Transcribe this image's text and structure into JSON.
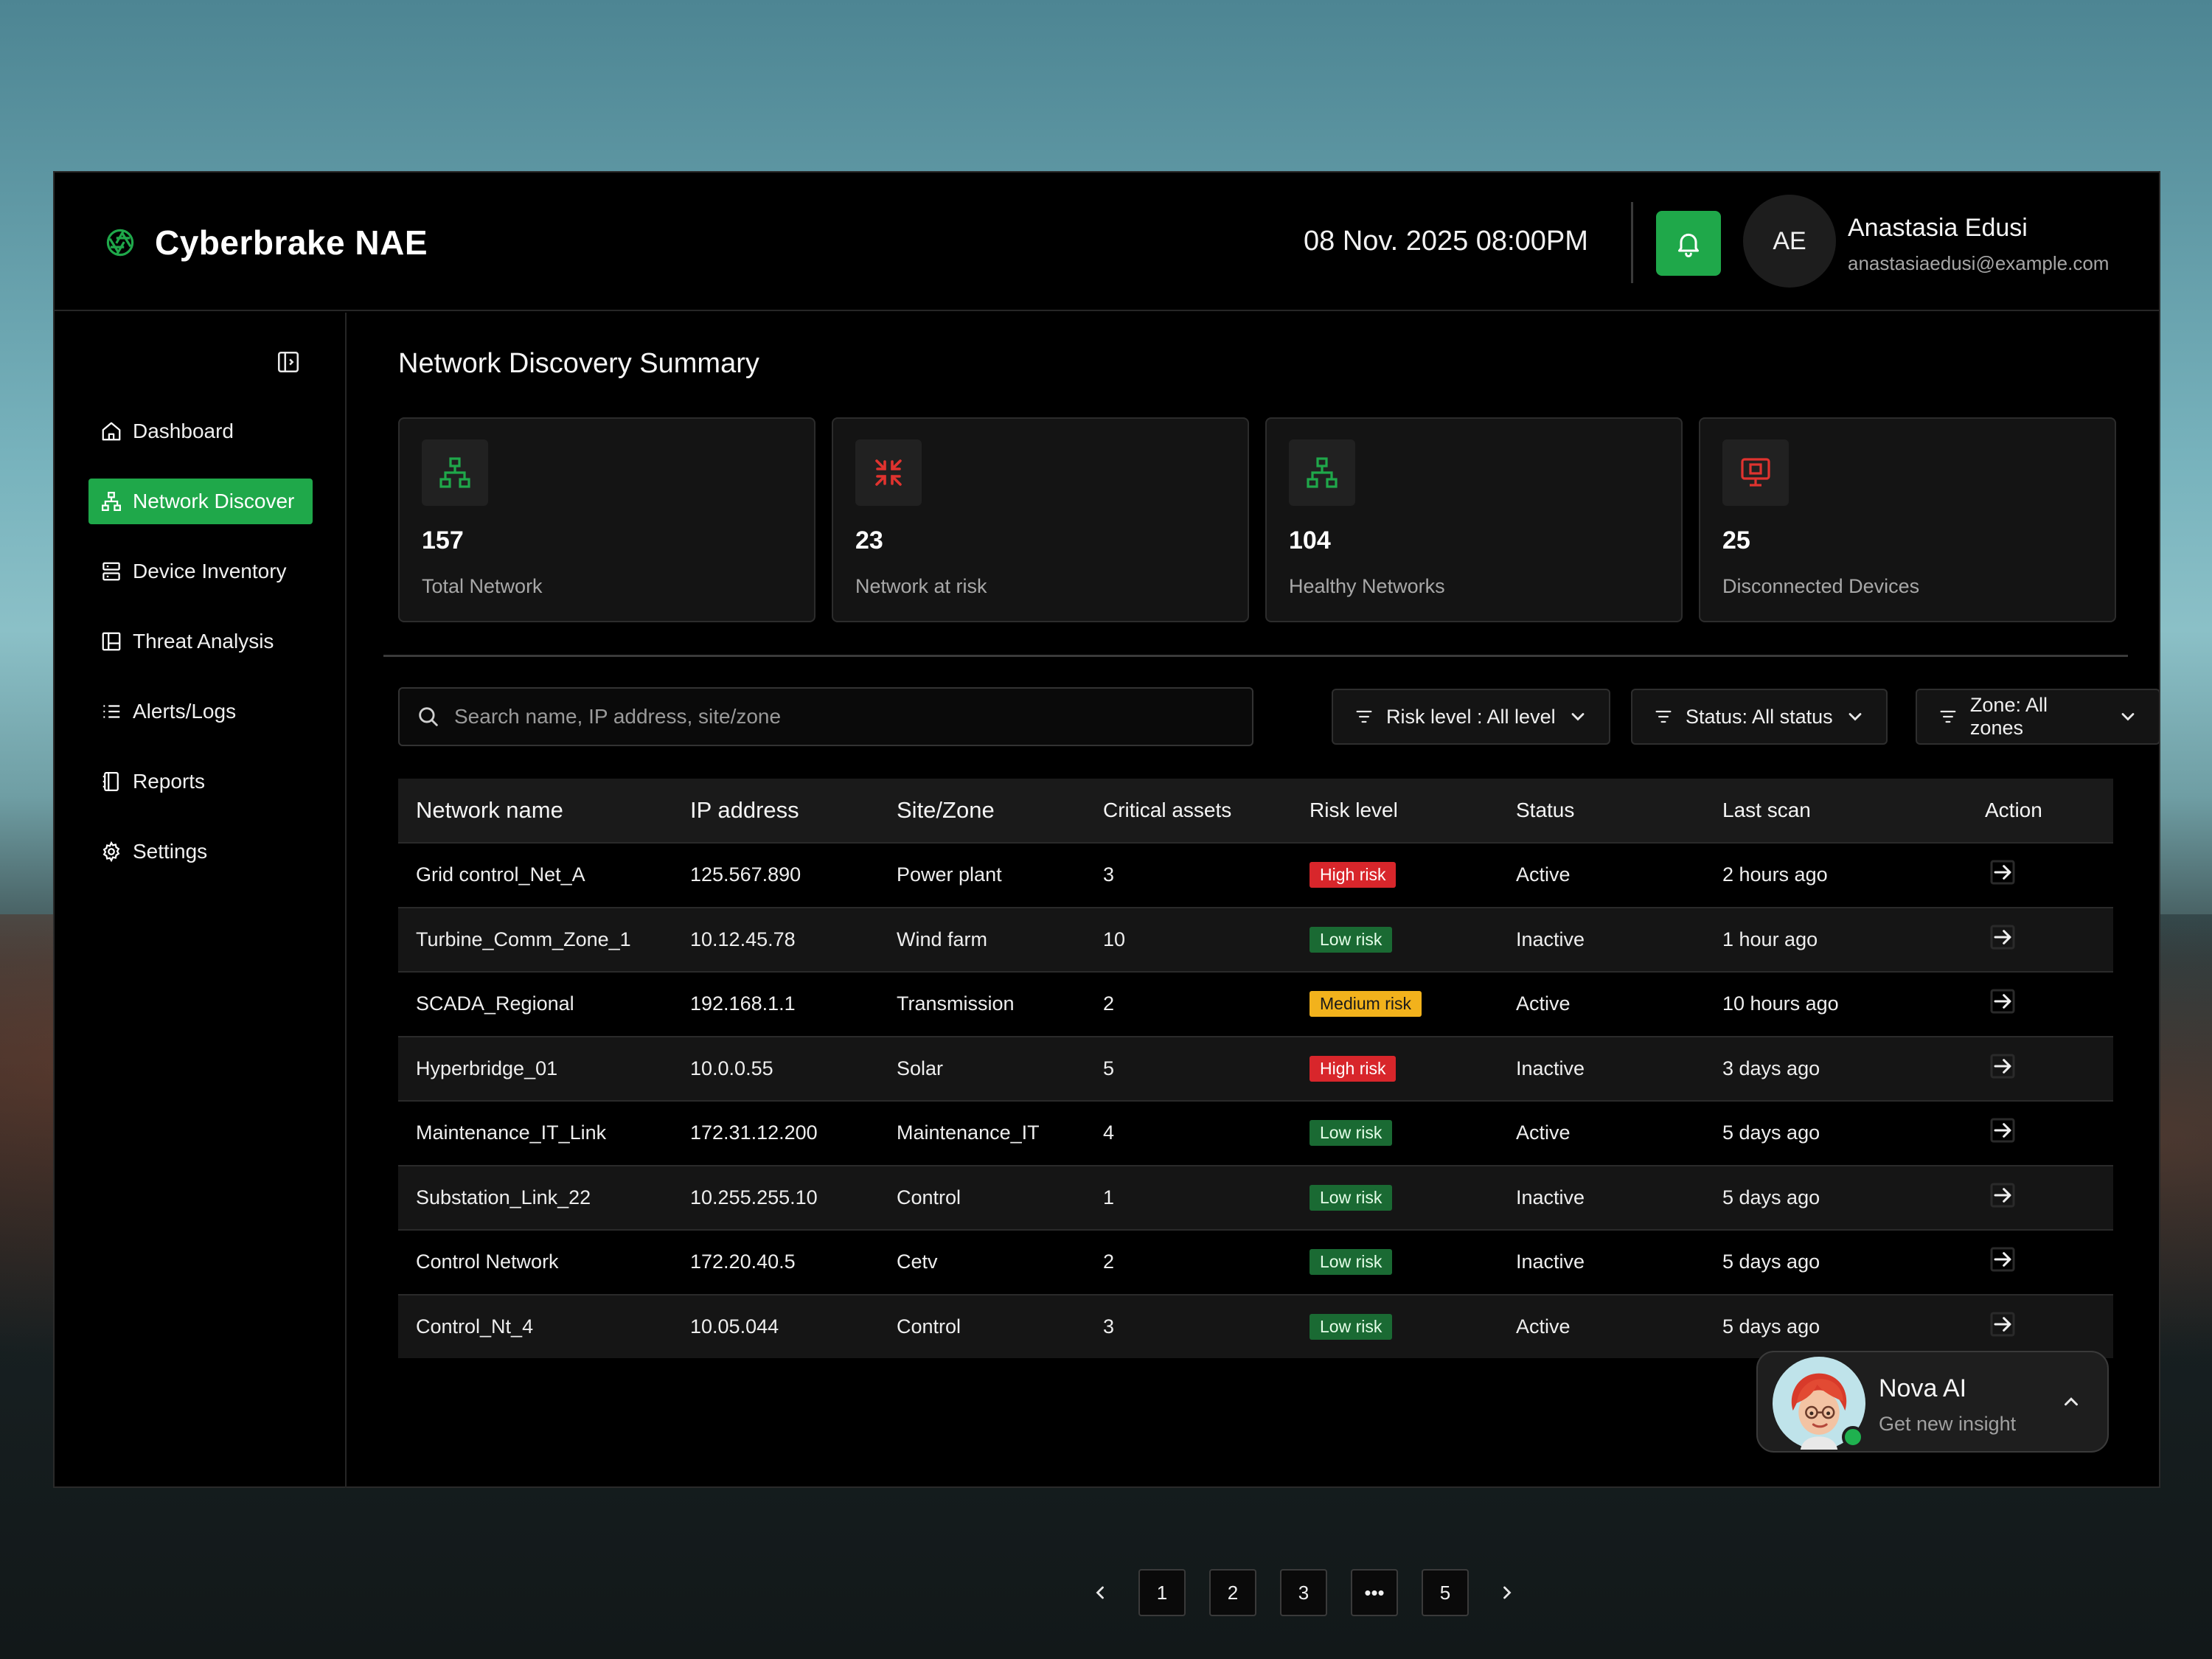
{
  "header": {
    "brand": "Cyberbrake NAE",
    "datetime": "08 Nov. 2025 08:00PM",
    "user": {
      "initials": "AE",
      "name": "Anastasia Edusi",
      "email": "anastasiaedusi@example.com"
    }
  },
  "sidebar": {
    "items": [
      {
        "label": "Dashboard",
        "icon": "home-icon"
      },
      {
        "label": "Network Discover",
        "icon": "network-icon",
        "active": true
      },
      {
        "label": "Device Inventory",
        "icon": "server-icon"
      },
      {
        "label": "Threat Analysis",
        "icon": "layout-icon"
      },
      {
        "label": "Alerts/Logs",
        "icon": "list-icon"
      },
      {
        "label": "Reports",
        "icon": "report-icon"
      },
      {
        "label": "Settings",
        "icon": "gear-icon"
      }
    ]
  },
  "main": {
    "title": "Network Discovery Summary",
    "cards": [
      {
        "value": "157",
        "label": "Total Network",
        "icon": "network-icon",
        "color": "#1fa84a"
      },
      {
        "value": "23",
        "label": "Network at risk",
        "icon": "shrink-arrows-icon",
        "color": "#e0332f"
      },
      {
        "value": "104",
        "label": "Healthy Networks",
        "icon": "network-icon",
        "color": "#1fa84a"
      },
      {
        "value": "25",
        "label": "Disconnected Devices",
        "icon": "monitor-icon",
        "color": "#e0332f"
      }
    ],
    "search": {
      "placeholder": "Search name, IP address, site/zone"
    },
    "filters": {
      "risk": "Risk level : All level",
      "status": "Status: All status",
      "zone": "Zone: All zones"
    },
    "table": {
      "columns": [
        "Network name",
        "IP address",
        "Site/Zone",
        "Critical assets",
        "Risk level",
        "Status",
        "Last scan",
        "Action"
      ],
      "rows": [
        {
          "name": "Grid control_Net_A",
          "ip": "125.567.890",
          "site": "Power plant",
          "assets": "3",
          "risk": "High risk",
          "risk_type": "high",
          "status": "Active",
          "scan": "2 hours ago"
        },
        {
          "name": "Turbine_Comm_Zone_1",
          "ip": "10.12.45.78",
          "site": "Wind farm",
          "assets": "10",
          "risk": "Low risk",
          "risk_type": "low",
          "status": "Inactive",
          "scan": "1 hour ago"
        },
        {
          "name": "SCADA_Regional",
          "ip": "192.168.1.1",
          "site": "Transmission",
          "assets": "2",
          "risk": "Medium risk",
          "risk_type": "medium",
          "status": "Active",
          "scan": "10 hours ago"
        },
        {
          "name": "Hyperbridge_01",
          "ip": "10.0.0.55",
          "site": "Solar",
          "assets": "5",
          "risk": "High risk",
          "risk_type": "high",
          "status": "Inactive",
          "scan": "3 days ago"
        },
        {
          "name": "Maintenance_IT_Link",
          "ip": "172.31.12.200",
          "site": "Maintenance_IT",
          "assets": "4",
          "risk": "Low risk",
          "risk_type": "low",
          "status": "Active",
          "scan": "5 days ago"
        },
        {
          "name": "Substation_Link_22",
          "ip": "10.255.255.10",
          "site": "Control",
          "assets": "1",
          "risk": "Low risk",
          "risk_type": "low",
          "status": "Inactive",
          "scan": "5 days ago"
        },
        {
          "name": "Control Network",
          "ip": "172.20.40.5",
          "site": "Cetv",
          "assets": "2",
          "risk": "Low risk",
          "risk_type": "low",
          "status": "Inactive",
          "scan": "5 days ago"
        },
        {
          "name": "Control_Nt_4",
          "ip": "10.05.044",
          "site": "Control",
          "assets": "3",
          "risk": "Low risk",
          "risk_type": "low",
          "status": "Active",
          "scan": "5 days ago"
        }
      ]
    },
    "pagination": {
      "pages": [
        "1",
        "2",
        "3",
        "•••",
        "5"
      ]
    }
  },
  "nova": {
    "title": "Nova AI",
    "subtitle": "Get new insight"
  }
}
